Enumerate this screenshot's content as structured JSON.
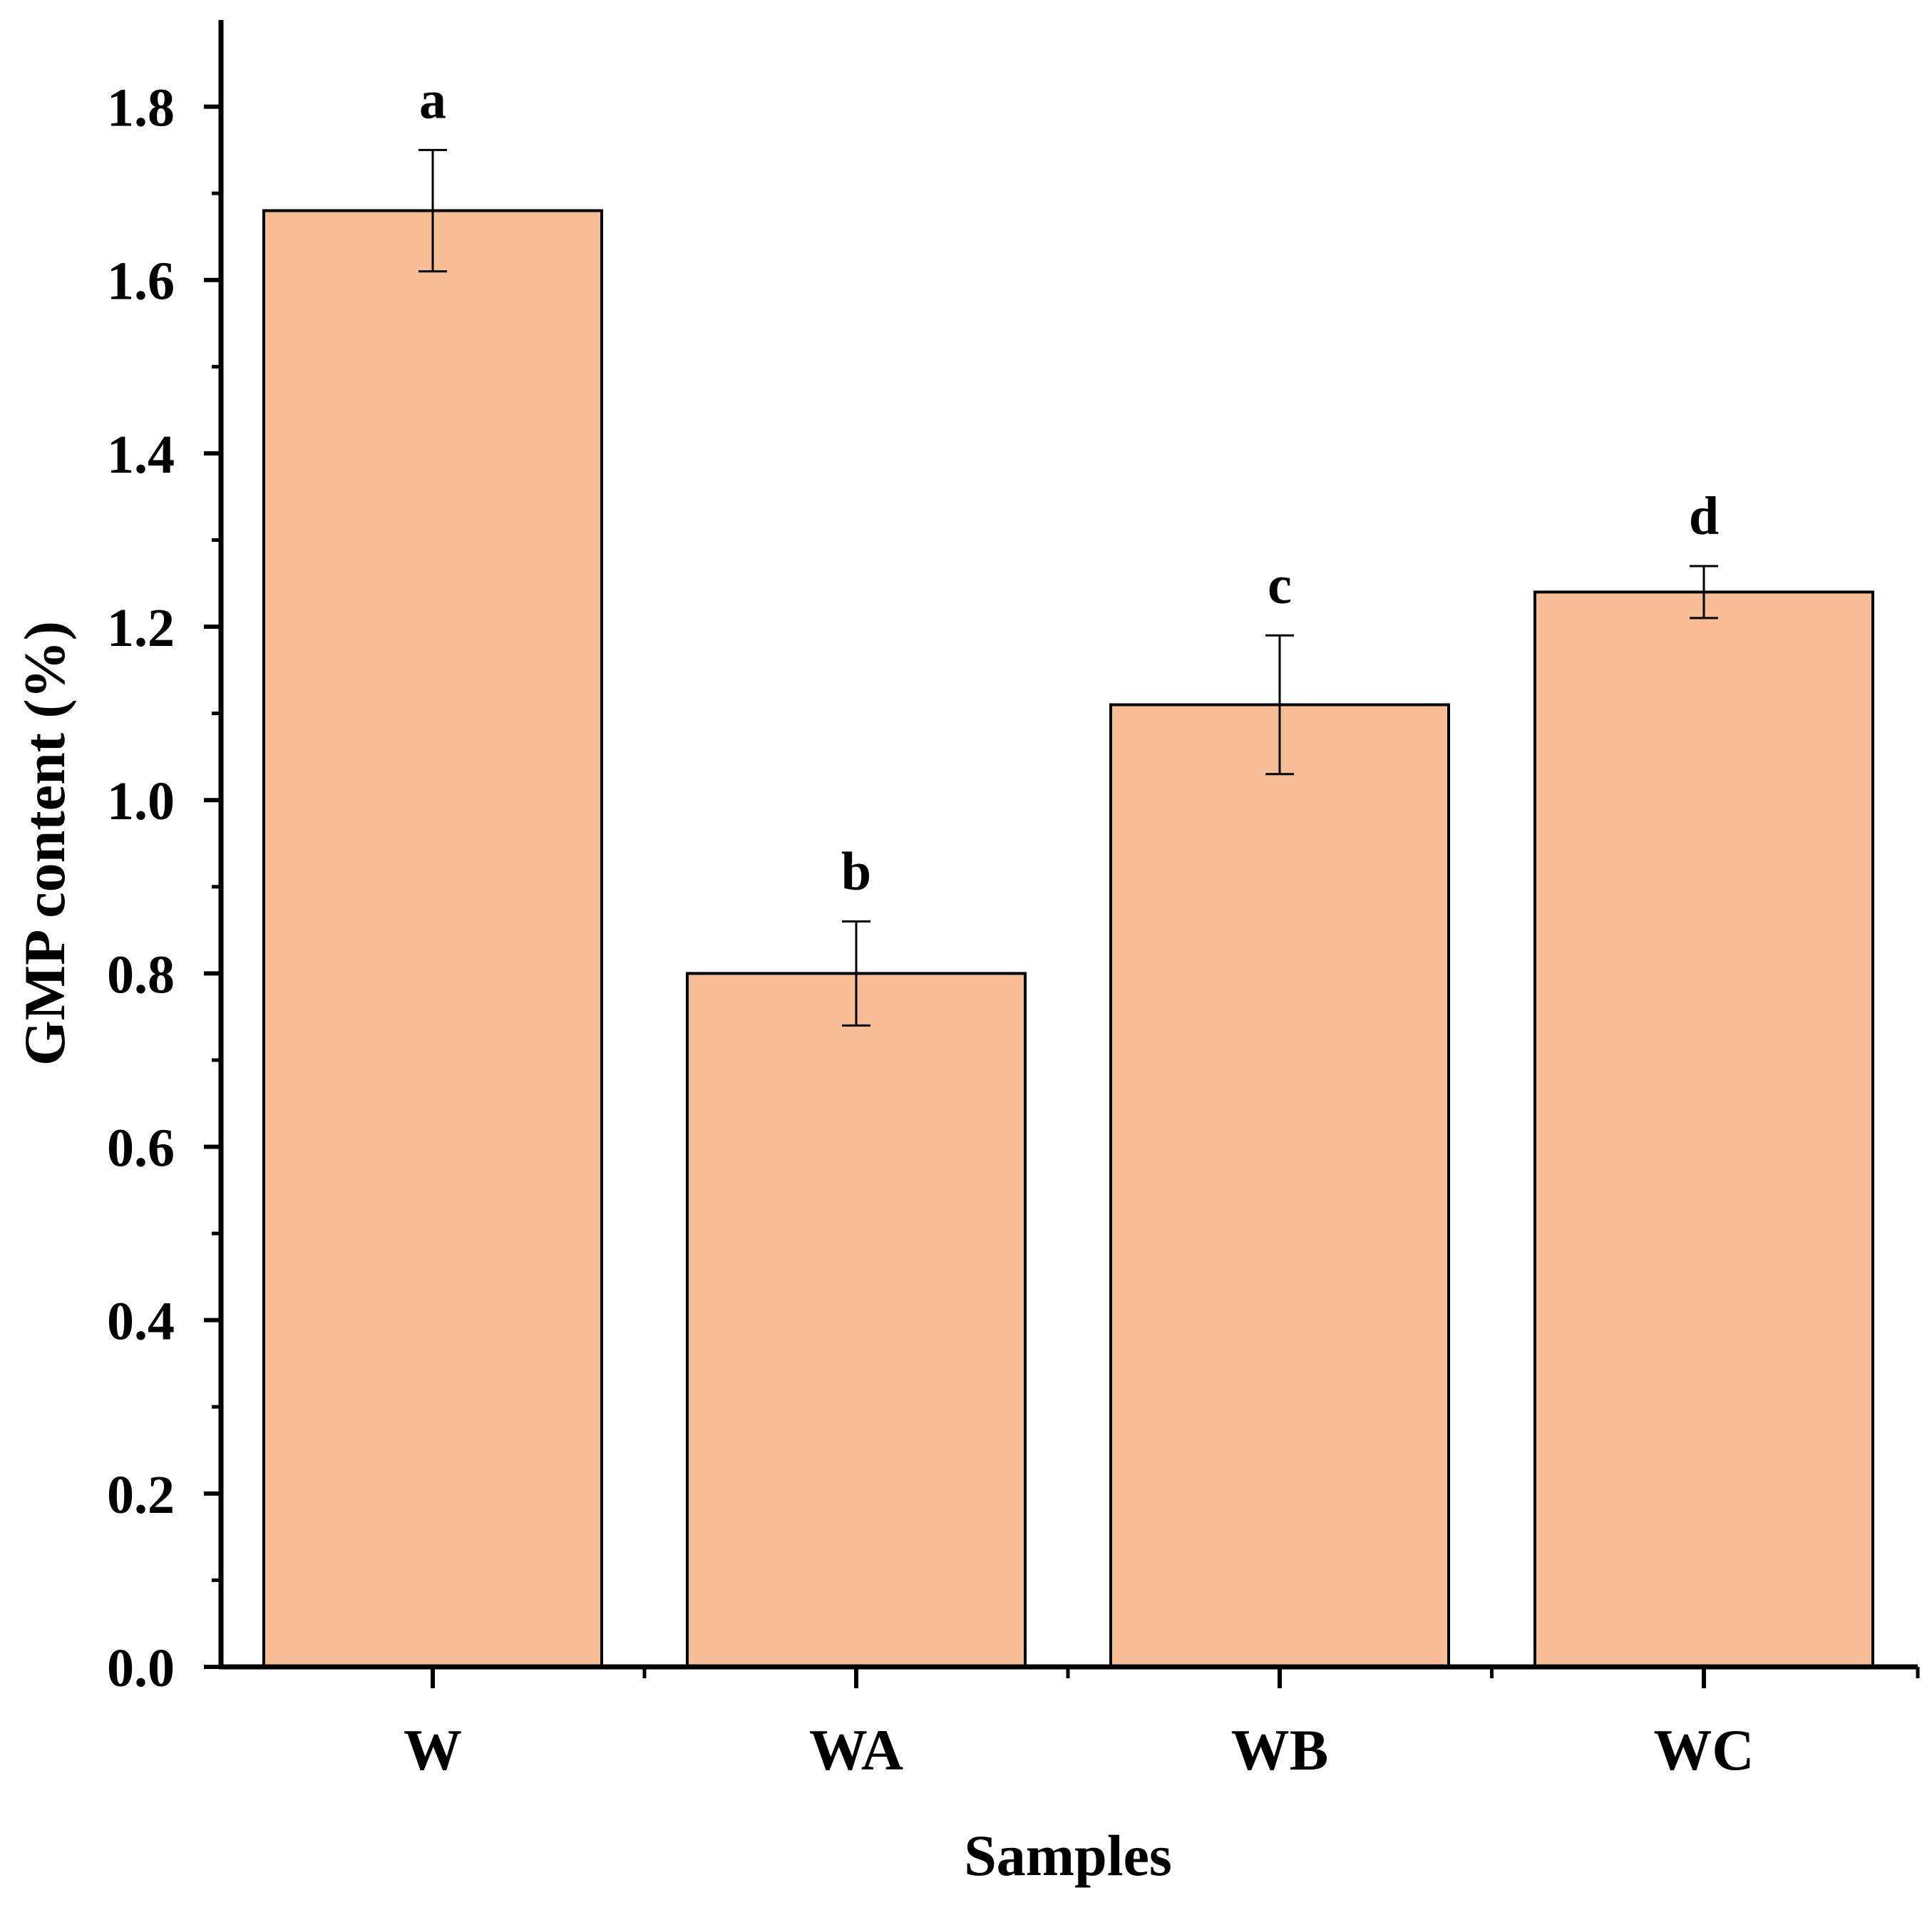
{
  "chart_data": {
    "type": "bar",
    "title": "",
    "xlabel": "Samples",
    "ylabel": "GMP content (%)",
    "categories": [
      "W",
      "WA",
      "WB",
      "WC"
    ],
    "values": [
      1.68,
      0.8,
      1.11,
      1.24
    ],
    "errors": [
      0.07,
      0.06,
      0.08,
      0.03
    ],
    "significance_letters": [
      "a",
      "b",
      "c",
      "d"
    ],
    "ylim": [
      0,
      1.9
    ],
    "yticks": [
      "0.0",
      "0.2",
      "0.4",
      "0.6",
      "0.8",
      "1.0",
      "1.2",
      "1.4",
      "1.6",
      "1.8"
    ],
    "grid": false,
    "legend": "none",
    "bar_color": "#F7BD94",
    "edge_color": "#000000"
  }
}
